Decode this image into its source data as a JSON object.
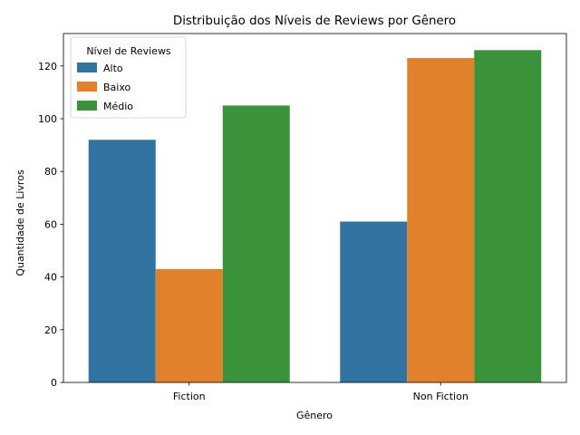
{
  "chart_data": {
    "type": "bar",
    "title": "Distribuição dos Níveis de Reviews por Gênero",
    "xlabel": "Gênero",
    "ylabel": "Quantidade de Livros",
    "categories": [
      "Fiction",
      "Non Fiction"
    ],
    "series": [
      {
        "name": "Alto",
        "values": [
          92,
          61
        ],
        "color": "#3274a1"
      },
      {
        "name": "Baixo",
        "values": [
          43,
          123
        ],
        "color": "#e1812c"
      },
      {
        "name": "Médio",
        "values": [
          105,
          126
        ],
        "color": "#3a923a"
      }
    ],
    "ylim": [
      0,
      132.3
    ],
    "yticks": [
      0,
      20,
      40,
      60,
      80,
      100,
      120
    ],
    "grid": false,
    "legend": {
      "title": "Nível de Reviews",
      "placement": "top-left"
    }
  }
}
